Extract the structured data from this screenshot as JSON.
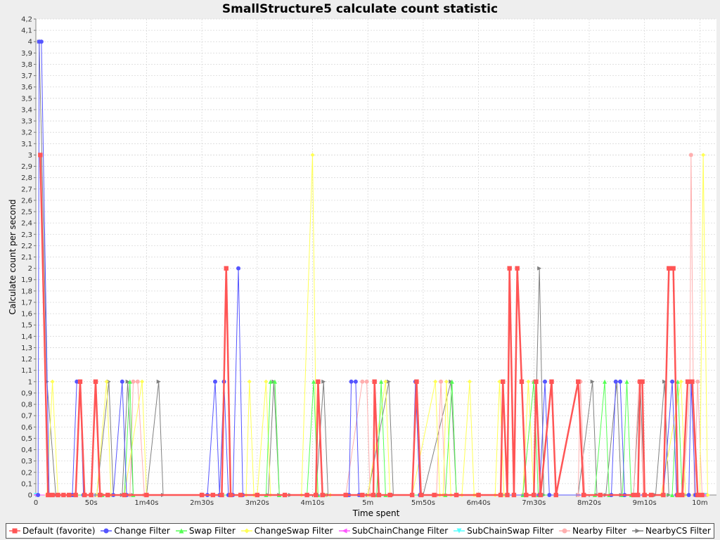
{
  "chart_data": {
    "type": "line",
    "title": "SmallStructure5 calculate count statistic",
    "xlabel": "Time spent",
    "ylabel": "Calculate count per second",
    "xlim": [
      0,
      615
    ],
    "ylim": [
      0,
      4.2
    ],
    "x_ticks": [
      {
        "value": 0,
        "label": "0"
      },
      {
        "value": 50,
        "label": "50s"
      },
      {
        "value": 100,
        "label": "1m40s"
      },
      {
        "value": 150,
        "label": "2m30s"
      },
      {
        "value": 200,
        "label": "3m20s"
      },
      {
        "value": 250,
        "label": "4m10s"
      },
      {
        "value": 300,
        "label": "5m"
      },
      {
        "value": 350,
        "label": "5m50s"
      },
      {
        "value": 400,
        "label": "6m40s"
      },
      {
        "value": 450,
        "label": "7m30s"
      },
      {
        "value": 500,
        "label": "8m20s"
      },
      {
        "value": 550,
        "label": "9m10s"
      },
      {
        "value": 600,
        "label": "10m"
      }
    ],
    "y_ticks": [
      "0",
      "0,1",
      "0,2",
      "0,3",
      "0,4",
      "0,5",
      "0,6",
      "0,7",
      "0,8",
      "0,9",
      "1",
      "1,1",
      "1,2",
      "1,3",
      "1,4",
      "1,5",
      "1,6",
      "1,7",
      "1,8",
      "1,9",
      "2",
      "2,1",
      "2,2",
      "2,3",
      "2,4",
      "2,5",
      "2,6",
      "2,7",
      "2,8",
      "2,9",
      "3",
      "3,1",
      "3,2",
      "3,3",
      "3,4",
      "3,5",
      "3,6",
      "3,7",
      "3,8",
      "3,9",
      "4",
      "4,1",
      "4,2"
    ],
    "grid": true,
    "legend_position": "bottom",
    "series": [
      {
        "name": "Default (favorite)",
        "color": "#ff5555",
        "marker": "square",
        "width": 2.5,
        "points": [
          [
            4,
            3
          ],
          [
            11,
            0
          ],
          [
            15,
            0
          ],
          [
            20,
            0
          ],
          [
            25,
            0
          ],
          [
            30,
            0
          ],
          [
            36,
            0
          ],
          [
            40,
            1
          ],
          [
            44,
            0
          ],
          [
            50,
            0
          ],
          [
            54,
            1
          ],
          [
            58,
            0
          ],
          [
            65,
            0
          ],
          [
            80,
            0
          ],
          [
            100,
            0
          ],
          [
            150,
            0
          ],
          [
            160,
            0
          ],
          [
            168,
            0
          ],
          [
            172,
            2
          ],
          [
            176,
            0
          ],
          [
            185,
            0
          ],
          [
            200,
            0
          ],
          [
            225,
            0
          ],
          [
            245,
            0
          ],
          [
            253,
            0
          ],
          [
            255,
            1
          ],
          [
            259,
            0
          ],
          [
            280,
            0
          ],
          [
            295,
            0
          ],
          [
            305,
            0
          ],
          [
            306,
            1
          ],
          [
            310,
            0
          ],
          [
            320,
            0
          ],
          [
            340,
            0
          ],
          [
            344,
            1
          ],
          [
            348,
            0
          ],
          [
            360,
            0
          ],
          [
            380,
            0
          ],
          [
            400,
            0
          ],
          [
            420,
            0
          ],
          [
            422,
            1
          ],
          [
            426,
            0
          ],
          [
            428,
            2
          ],
          [
            432,
            0
          ],
          [
            435,
            2
          ],
          [
            439,
            1
          ],
          [
            443,
            0
          ],
          [
            450,
            0
          ],
          [
            452,
            1
          ],
          [
            456,
            0
          ],
          [
            466,
            1
          ],
          [
            470,
            0
          ],
          [
            490,
            1
          ],
          [
            495,
            0
          ],
          [
            510,
            0
          ],
          [
            540,
            0
          ],
          [
            550,
            0
          ],
          [
            544,
            0
          ],
          [
            546,
            1
          ],
          [
            548,
            1
          ],
          [
            556,
            0
          ],
          [
            567,
            0
          ],
          [
            572,
            2
          ],
          [
            576,
            2
          ],
          [
            580,
            0
          ],
          [
            584,
            0
          ],
          [
            589,
            1
          ],
          [
            593,
            1
          ],
          [
            598,
            0
          ],
          [
            602,
            0
          ]
        ]
      },
      {
        "name": "Change Filter",
        "color": "#5555ff",
        "marker": "circle",
        "width": 1,
        "points": [
          [
            2,
            0
          ],
          [
            3,
            4
          ],
          [
            5,
            4
          ],
          [
            12,
            0
          ],
          [
            20,
            0
          ],
          [
            25,
            0
          ],
          [
            33,
            0
          ],
          [
            37,
            1
          ],
          [
            40,
            1
          ],
          [
            43,
            0
          ],
          [
            70,
            0
          ],
          [
            78,
            1
          ],
          [
            82,
            0
          ],
          [
            150,
            0
          ],
          [
            155,
            0
          ],
          [
            162,
            1
          ],
          [
            166,
            0
          ],
          [
            170,
            1
          ],
          [
            174,
            0
          ],
          [
            178,
            0
          ],
          [
            183,
            2
          ],
          [
            187,
            0
          ],
          [
            260,
            0
          ],
          [
            283,
            0
          ],
          [
            285,
            1
          ],
          [
            289,
            1
          ],
          [
            292,
            0
          ],
          [
            340,
            0
          ],
          [
            343,
            1
          ],
          [
            347,
            0
          ],
          [
            420,
            0
          ],
          [
            455,
            0
          ],
          [
            460,
            1
          ],
          [
            464,
            0
          ],
          [
            520,
            0
          ],
          [
            524,
            1
          ],
          [
            528,
            1
          ],
          [
            532,
            0
          ],
          [
            567,
            0
          ],
          [
            575,
            1
          ],
          [
            579,
            0
          ],
          [
            590,
            0
          ],
          [
            592,
            1
          ],
          [
            596,
            0
          ]
        ]
      },
      {
        "name": "Swap Filter",
        "color": "#55ff55",
        "marker": "triangle-up",
        "width": 1,
        "points": [
          [
            35,
            0
          ],
          [
            60,
            0
          ],
          [
            80,
            0
          ],
          [
            85,
            1
          ],
          [
            88,
            0
          ],
          [
            200,
            0
          ],
          [
            208,
            0
          ],
          [
            212,
            1
          ],
          [
            216,
            1
          ],
          [
            220,
            0
          ],
          [
            245,
            0
          ],
          [
            251,
            1
          ],
          [
            255,
            0
          ],
          [
            308,
            0
          ],
          [
            312,
            1
          ],
          [
            316,
            0
          ],
          [
            370,
            0
          ],
          [
            376,
            1
          ],
          [
            380,
            0
          ],
          [
            440,
            0
          ],
          [
            450,
            1
          ],
          [
            454,
            0
          ],
          [
            505,
            0
          ],
          [
            514,
            1
          ],
          [
            518,
            0
          ],
          [
            530,
            0
          ],
          [
            534,
            1
          ],
          [
            538,
            0
          ],
          [
            575,
            0
          ],
          [
            580,
            1
          ],
          [
            584,
            0
          ]
        ]
      },
      {
        "name": "ChangeSwap Filter",
        "color": "#ffff55",
        "marker": "diamond",
        "width": 1,
        "points": [
          [
            10,
            0
          ],
          [
            15,
            1
          ],
          [
            20,
            0
          ],
          [
            55,
            0
          ],
          [
            64,
            1
          ],
          [
            68,
            0
          ],
          [
            80,
            0
          ],
          [
            96,
            1
          ],
          [
            100,
            0
          ],
          [
            190,
            0
          ],
          [
            193,
            1
          ],
          [
            197,
            0
          ],
          [
            200,
            0
          ],
          [
            208,
            1
          ],
          [
            212,
            0
          ],
          [
            240,
            0
          ],
          [
            250,
            3
          ],
          [
            254,
            0
          ],
          [
            262,
            0
          ],
          [
            266,
            0
          ],
          [
            300,
            0
          ],
          [
            316,
            1
          ],
          [
            320,
            0
          ],
          [
            340,
            0
          ],
          [
            361,
            1
          ],
          [
            365,
            0
          ],
          [
            368,
            0
          ],
          [
            371,
            1
          ],
          [
            375,
            0
          ],
          [
            385,
            0
          ],
          [
            392,
            1
          ],
          [
            396,
            0
          ],
          [
            398,
            0
          ],
          [
            400,
            0
          ],
          [
            415,
            0
          ],
          [
            419,
            1
          ],
          [
            423,
            0
          ],
          [
            440,
            0
          ],
          [
            445,
            1
          ],
          [
            450,
            0
          ],
          [
            565,
            0
          ],
          [
            583,
            1
          ],
          [
            587,
            0
          ],
          [
            600,
            0
          ],
          [
            603,
            3
          ],
          [
            607,
            0
          ]
        ]
      },
      {
        "name": "SubChainChange Filter",
        "color": "#ff55ff",
        "marker": "triangle-left",
        "width": 1,
        "points": [
          [
            0,
            0
          ],
          [
            605,
            0
          ]
        ]
      },
      {
        "name": "SubChainSwap Filter",
        "color": "#55ffff",
        "marker": "triangle-down",
        "width": 1,
        "points": [
          [
            0,
            0
          ],
          [
            605,
            0
          ]
        ]
      },
      {
        "name": "Nearby Filter",
        "color": "#ffafaf",
        "marker": "circle",
        "width": 1,
        "points": [
          [
            30,
            0
          ],
          [
            60,
            0
          ],
          [
            85,
            0
          ],
          [
            88,
            1
          ],
          [
            92,
            1
          ],
          [
            98,
            0
          ],
          [
            280,
            0
          ],
          [
            295,
            1
          ],
          [
            299,
            1
          ],
          [
            302,
            0
          ],
          [
            362,
            0
          ],
          [
            366,
            1
          ],
          [
            370,
            0
          ],
          [
            440,
            0
          ],
          [
            450,
            1
          ],
          [
            454,
            0
          ],
          [
            490,
            0
          ],
          [
            492,
            1
          ],
          [
            496,
            0
          ],
          [
            540,
            0
          ],
          [
            545,
            1
          ],
          [
            549,
            0
          ],
          [
            585,
            0
          ],
          [
            591,
            1
          ],
          [
            595,
            0
          ],
          [
            598,
            1
          ],
          [
            602,
            0
          ],
          [
            605,
            0
          ],
          [
            592,
            3
          ]
        ]
      },
      {
        "name": "NearbyCS Filter",
        "color": "#808080",
        "marker": "triangle-right",
        "width": 1,
        "points": [
          [
            3,
            4
          ],
          [
            10,
            1
          ],
          [
            18,
            0
          ],
          [
            55,
            0
          ],
          [
            66,
            1
          ],
          [
            70,
            0
          ],
          [
            78,
            0
          ],
          [
            83,
            1
          ],
          [
            88,
            0
          ],
          [
            100,
            0
          ],
          [
            111,
            1
          ],
          [
            115,
            0
          ],
          [
            210,
            0
          ],
          [
            215,
            1
          ],
          [
            220,
            0
          ],
          [
            230,
            0
          ],
          [
            253,
            0
          ],
          [
            260,
            1
          ],
          [
            264,
            0
          ],
          [
            300,
            0
          ],
          [
            319,
            1
          ],
          [
            323,
            0
          ],
          [
            350,
            0
          ],
          [
            375,
            1
          ],
          [
            380,
            0
          ],
          [
            450,
            0
          ],
          [
            455,
            2
          ],
          [
            459,
            0
          ],
          [
            490,
            0
          ],
          [
            503,
            1
          ],
          [
            507,
            0
          ],
          [
            515,
            0
          ],
          [
            525,
            1
          ],
          [
            529,
            0
          ],
          [
            540,
            0
          ],
          [
            546,
            1
          ],
          [
            550,
            0
          ],
          [
            560,
            0
          ],
          [
            568,
            1
          ],
          [
            572,
            0
          ]
        ]
      }
    ]
  }
}
